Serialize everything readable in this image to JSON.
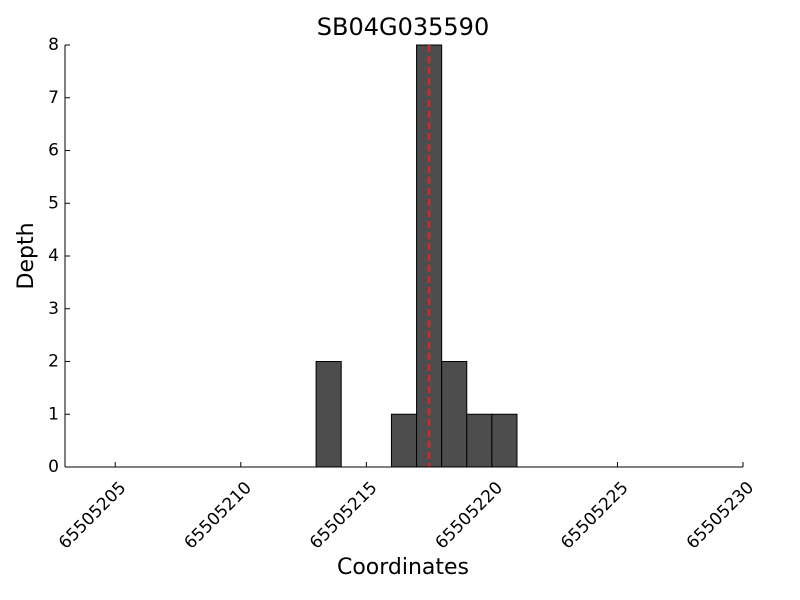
{
  "chart_data": {
    "type": "histogram",
    "title": "SB04G035590",
    "xlabel": "Coordinates",
    "ylabel": "Depth",
    "bins": [
      65505213,
      65505214,
      65505215,
      65505216,
      65505217,
      65505218,
      65505219,
      65505220,
      65505221
    ],
    "counts": [
      2,
      0,
      0,
      1,
      8,
      2,
      1,
      1
    ],
    "color": "#4d4d4d",
    "vline": 65505217.5,
    "vline_color": "#d62728",
    "xlim": [
      65505203,
      65505230
    ],
    "xticks": [
      65505205,
      65505210,
      65505215,
      65505220,
      65505225,
      65505230
    ],
    "ylim": [
      0,
      8
    ],
    "yticks": [
      0,
      1,
      2,
      3,
      4,
      5,
      6,
      7,
      8
    ]
  }
}
